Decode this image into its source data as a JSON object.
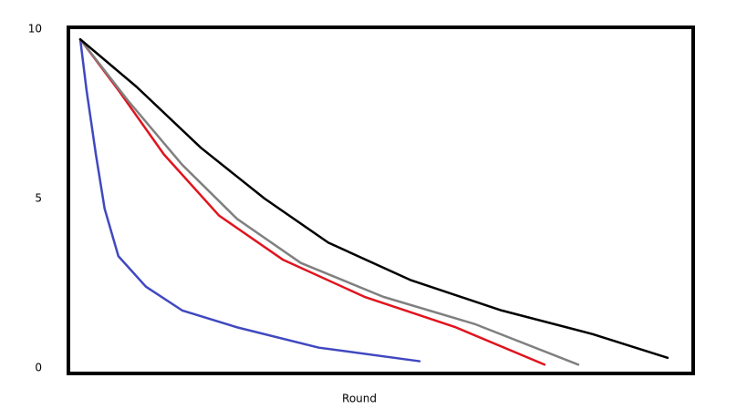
{
  "chart_data": {
    "type": "line",
    "x_label": "Round",
    "xlim": [
      0,
      100
    ],
    "ylim": [
      0,
      10
    ],
    "yticks": [
      0,
      5,
      10
    ],
    "grid": false,
    "series": [
      {
        "color": "#4048c0",
        "x": [
          1.9,
          2.9,
          4.4,
          5.8,
          8.0,
          12.4,
          18.2,
          27.0,
          40.1,
          56.2
        ],
        "values": [
          9.7,
          8.2,
          6.3,
          4.7,
          3.3,
          2.4,
          1.7,
          1.2,
          0.6,
          0.2
        ]
      },
      {
        "color": "#e0141e",
        "x": [
          1.9,
          8.0,
          15.3,
          24.1,
          34.3,
          47.4,
          62.0,
          76.2
        ],
        "values": [
          9.7,
          8.2,
          6.3,
          4.5,
          3.2,
          2.1,
          1.2,
          0.1
        ]
      },
      {
        "color": "#808080",
        "x": [
          1.9,
          9.5,
          18.2,
          27.0,
          37.2,
          50.4,
          65.0,
          81.6
        ],
        "values": [
          9.7,
          7.9,
          6.0,
          4.4,
          3.1,
          2.1,
          1.3,
          0.1
        ]
      },
      {
        "color": "#000000",
        "x": [
          1.9,
          10.9,
          21.2,
          31.4,
          41.6,
          54.7,
          69.3,
          83.9,
          95.9
        ],
        "values": [
          9.7,
          8.3,
          6.5,
          5.0,
          3.7,
          2.6,
          1.7,
          1.0,
          0.3
        ]
      }
    ]
  }
}
